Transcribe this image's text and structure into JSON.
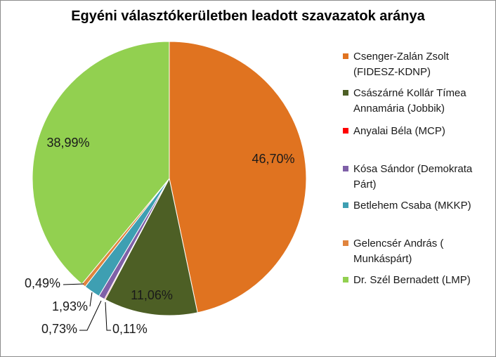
{
  "chart_data": {
    "type": "pie",
    "title": "Egyéni választókerületben leadott szavazatok aránya",
    "slices": [
      {
        "name": "Csenger-Zalán Zsolt (FIDESZ-KDNP)",
        "value": 46.7,
        "label": "46,70%",
        "color": "#e07320"
      },
      {
        "name": "Császárné Kollár Tímea Annamária (Jobbik)",
        "value": 11.06,
        "label": "11,06%",
        "color": "#4d5f25"
      },
      {
        "name": "Anyalai Béla (MCP)",
        "value": 0.11,
        "label": "0,11%",
        "color": "#ff0000"
      },
      {
        "name": "Kósa Sándor (Demokrata Párt)",
        "value": 0.73,
        "label": "0,73%",
        "color": "#7f60a8"
      },
      {
        "name": "Betlehem Csaba (MKKP)",
        "value": 1.93,
        "label": "1,93%",
        "color": "#3e9fb2"
      },
      {
        "name": "Gelencsér András ( Munkáspárt)",
        "value": 0.49,
        "label": "0,49%",
        "color": "#e0843e"
      },
      {
        "name": "Dr. Szél Bernadett (LMP)",
        "value": 38.99,
        "label": "38,99%",
        "color": "#92d050"
      }
    ],
    "legend": {
      "placement": "right",
      "entries": [
        {
          "lines": [
            "Csenger-Zalán Zsolt",
            "(FIDESZ-KDNP)"
          ],
          "color": "#e07320"
        },
        {
          "lines": [
            "Császárné Kollár Tímea",
            "Annamária (Jobbik)"
          ],
          "color": "#4d5f25"
        },
        {
          "lines": [
            "Anyalai Béla (MCP)"
          ],
          "color": "#ff0000"
        },
        {
          "lines": [
            "Kósa Sándor (Demokrata",
            "Párt)"
          ],
          "color": "#7f60a8"
        },
        {
          "lines": [
            "Betlehem Csaba (MKKP)"
          ],
          "color": "#3e9fb2"
        },
        {
          "lines": [
            "Gelencsér András (",
            "Munkáspárt)"
          ],
          "color": "#e0843e"
        },
        {
          "lines": [
            "Dr. Szél Bernadett (LMP)"
          ],
          "color": "#92d050"
        }
      ]
    }
  }
}
